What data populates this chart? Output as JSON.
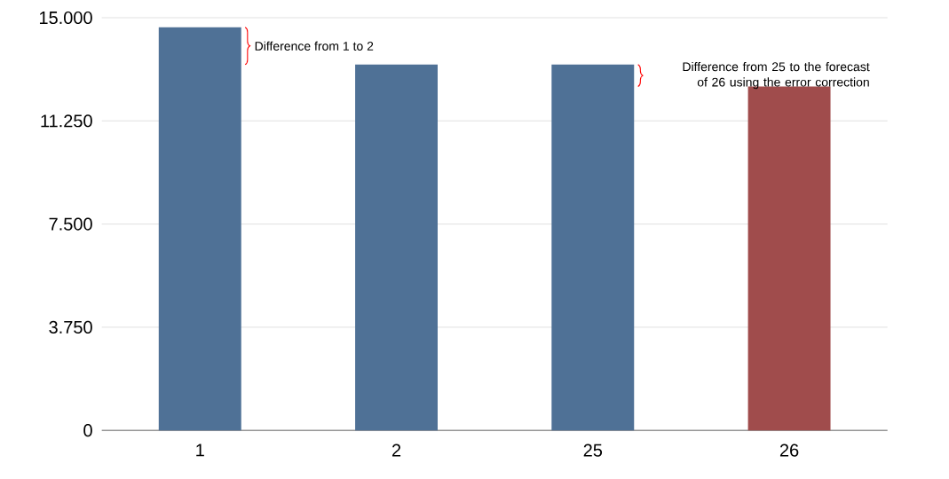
{
  "chart_data": {
    "type": "bar",
    "categories": [
      "1",
      "2",
      "25",
      "26"
    ],
    "values": [
      14650,
      13300,
      13300,
      12500
    ],
    "colors": [
      "#4f7196",
      "#4f7196",
      "#4f7196",
      "#a04c4c"
    ],
    "ylim": [
      0,
      15000
    ],
    "yticks": [
      {
        "value": 0,
        "label": "0"
      },
      {
        "value": 3750,
        "label": "3.750"
      },
      {
        "value": 7500,
        "label": "7.500"
      },
      {
        "value": 11250,
        "label": "11.250"
      },
      {
        "value": 15000,
        "label": "15.000"
      }
    ],
    "grid": "y",
    "annotations": [
      "Difference from 1 to 2",
      "Difference from 25 to the forecast of 26 using the error correction"
    ]
  }
}
